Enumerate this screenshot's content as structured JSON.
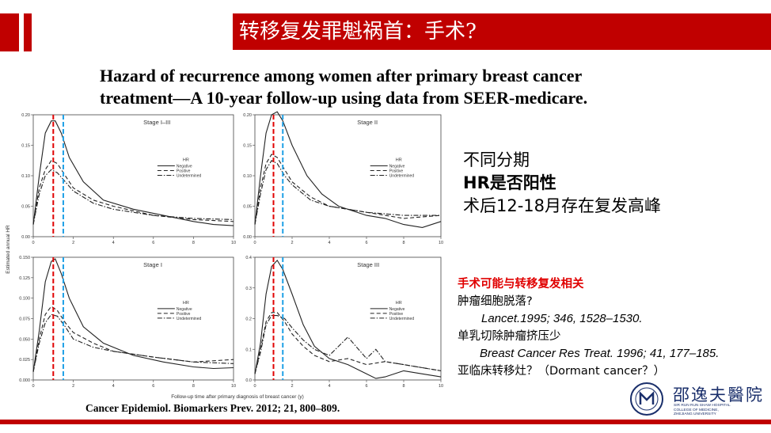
{
  "slide_title": "转移复发罪魁祸首：手术?",
  "paper_title_line1": "Hazard of recurrence among women after primary breast cancer",
  "paper_title_line2": "treatment—A 10-year follow-up using data from SEER-medicare.",
  "key_points": [
    "不同分期",
    "HR是否阳性",
    "术后12-18月存在复发高峰"
  ],
  "notes": {
    "heading": "手术可能与转移复发相关",
    "line1": "肿瘤细胞脱落?",
    "ref1": "Lancet.1995; 346, 1528–1530.",
    "line2": "单乳切除肿瘤挤压少",
    "ref2": "Breast Cancer Res Treat. 1996; 41, 177–185.",
    "line3": "亚临床转移灶？（Dormant cancer？）"
  },
  "citation": "Cancer Epidemiol. Biomarkers Prev. 2012; 21, 800–809.",
  "hospital_logo": {
    "name": "邵逸夫醫院",
    "sub1": "SIR RUN RUN SHAW HOSPITAL",
    "sub2": "COLLEGE OF MEDICINE,",
    "sub3": "ZHEJIANG UNIVERSITY"
  },
  "chart_data": [
    {
      "type": "line",
      "title": "Stage I–III",
      "xlabel": "Follow-up time after primary diagnosis of breast cancer (y)",
      "ylabel": "Estimated annual HR",
      "xlim": [
        0,
        10
      ],
      "ylim": [
        0,
        0.2
      ],
      "xticks": [
        0,
        2,
        4,
        6,
        8,
        10
      ],
      "yticks": [
        0.0,
        0.05,
        0.1,
        0.15,
        0.2
      ],
      "legend_title": "HR",
      "series": [
        {
          "name": "Negative",
          "style": "solid",
          "x": [
            0,
            0.3,
            0.6,
            0.9,
            1.1,
            1.4,
            1.8,
            2.5,
            3.5,
            5,
            6.5,
            8,
            9,
            10
          ],
          "y": [
            0.02,
            0.1,
            0.17,
            0.19,
            0.19,
            0.17,
            0.13,
            0.09,
            0.06,
            0.045,
            0.035,
            0.025,
            0.02,
            0.018
          ]
        },
        {
          "name": "Positive",
          "style": "dashed",
          "x": [
            0,
            0.3,
            0.6,
            0.9,
            1.2,
            1.6,
            2,
            3,
            4,
            6,
            8,
            10
          ],
          "y": [
            0.02,
            0.08,
            0.11,
            0.125,
            0.12,
            0.1,
            0.08,
            0.06,
            0.05,
            0.035,
            0.028,
            0.025
          ]
        },
        {
          "name": "Undetermined",
          "style": "dashdot",
          "x": [
            0,
            0.3,
            0.6,
            0.9,
            1.2,
            1.6,
            2,
            3,
            4,
            6,
            8,
            10
          ],
          "y": [
            0.02,
            0.07,
            0.1,
            0.11,
            0.105,
            0.09,
            0.075,
            0.055,
            0.045,
            0.035,
            0.03,
            0.028
          ]
        }
      ]
    },
    {
      "type": "line",
      "title": "Stage II",
      "xlim": [
        0,
        10
      ],
      "ylim": [
        0,
        0.2
      ],
      "xticks": [
        0,
        2,
        4,
        6,
        8,
        10
      ],
      "yticks": [
        0.0,
        0.05,
        0.1,
        0.15,
        0.2
      ],
      "legend_title": "HR",
      "series": [
        {
          "name": "Negative",
          "style": "solid",
          "x": [
            0,
            0.3,
            0.6,
            0.9,
            1.2,
            1.5,
            2,
            2.8,
            3.6,
            4.5,
            6,
            7,
            8,
            9,
            10
          ],
          "y": [
            0.02,
            0.1,
            0.17,
            0.2,
            0.205,
            0.19,
            0.15,
            0.1,
            0.07,
            0.05,
            0.035,
            0.03,
            0.02,
            0.015,
            0.025
          ]
        },
        {
          "name": "Positive",
          "style": "dashed",
          "x": [
            0,
            0.3,
            0.6,
            0.9,
            1.2,
            1.6,
            2,
            3,
            4,
            6,
            8,
            10
          ],
          "y": [
            0.02,
            0.08,
            0.12,
            0.135,
            0.13,
            0.11,
            0.09,
            0.065,
            0.05,
            0.04,
            0.03,
            0.035
          ]
        },
        {
          "name": "Undetermined",
          "style": "dashdot",
          "x": [
            0,
            0.3,
            0.6,
            0.9,
            1.2,
            1.6,
            2,
            3,
            4,
            6,
            8,
            10
          ],
          "y": [
            0.02,
            0.07,
            0.11,
            0.125,
            0.12,
            0.1,
            0.085,
            0.06,
            0.05,
            0.04,
            0.035,
            0.035
          ]
        }
      ]
    },
    {
      "type": "line",
      "title": "Stage I",
      "xlim": [
        0,
        10
      ],
      "ylim": [
        0,
        0.15
      ],
      "xticks": [
        0,
        2,
        4,
        6,
        8,
        10
      ],
      "yticks": [
        0.0,
        0.025,
        0.05,
        0.075,
        0.1,
        0.125,
        0.15
      ],
      "legend_title": "HR",
      "series": [
        {
          "name": "Negative",
          "style": "solid",
          "x": [
            0,
            0.3,
            0.6,
            0.9,
            1.1,
            1.4,
            1.8,
            2.5,
            3.5,
            5,
            6.5,
            8,
            9,
            10
          ],
          "y": [
            0.01,
            0.06,
            0.12,
            0.145,
            0.148,
            0.13,
            0.1,
            0.065,
            0.045,
            0.03,
            0.022,
            0.016,
            0.014,
            0.015
          ]
        },
        {
          "name": "Positive",
          "style": "dashed",
          "x": [
            0,
            0.3,
            0.6,
            0.9,
            1.2,
            1.6,
            2,
            3,
            4,
            6,
            8,
            10
          ],
          "y": [
            0.01,
            0.05,
            0.08,
            0.09,
            0.085,
            0.07,
            0.058,
            0.045,
            0.035,
            0.028,
            0.022,
            0.025
          ]
        },
        {
          "name": "Undetermined",
          "style": "dashdot",
          "x": [
            0,
            0.3,
            0.6,
            0.9,
            1.2,
            1.6,
            2,
            3,
            4,
            6,
            8,
            10
          ],
          "y": [
            0.01,
            0.045,
            0.07,
            0.08,
            0.078,
            0.065,
            0.05,
            0.04,
            0.035,
            0.028,
            0.022,
            0.02
          ]
        }
      ]
    },
    {
      "type": "line",
      "title": "Stage III",
      "xlim": [
        0,
        10
      ],
      "ylim": [
        0,
        0.4
      ],
      "xticks": [
        0,
        2,
        4,
        6,
        8,
        10
      ],
      "yticks": [
        0.0,
        0.1,
        0.2,
        0.3,
        0.4
      ],
      "legend_title": "HR",
      "series": [
        {
          "name": "Negative",
          "style": "solid",
          "x": [
            0,
            0.3,
            0.6,
            0.9,
            1.2,
            1.5,
            2,
            2.6,
            3.2,
            4,
            5,
            6,
            6.5,
            7,
            8,
            9,
            10
          ],
          "y": [
            0.02,
            0.12,
            0.28,
            0.37,
            0.39,
            0.36,
            0.28,
            0.18,
            0.11,
            0.07,
            0.05,
            0.02,
            0.005,
            0.01,
            0.03,
            0.02,
            0.01
          ]
        },
        {
          "name": "Positive",
          "style": "dashed",
          "x": [
            0,
            0.3,
            0.6,
            0.9,
            1.2,
            1.6,
            2,
            2.6,
            3.2,
            4,
            5,
            6,
            7,
            8,
            9,
            10
          ],
          "y": [
            0.02,
            0.1,
            0.19,
            0.22,
            0.22,
            0.19,
            0.15,
            0.11,
            0.08,
            0.06,
            0.07,
            0.05,
            0.06,
            0.05,
            0.04,
            0.03
          ]
        },
        {
          "name": "Undetermined",
          "style": "dashdot",
          "x": [
            0,
            0.3,
            0.6,
            0.9,
            1.2,
            1.6,
            2,
            2.6,
            3.2,
            4,
            5,
            6,
            6.5,
            7,
            8,
            9,
            10
          ],
          "y": [
            0.02,
            0.09,
            0.18,
            0.21,
            0.21,
            0.2,
            0.17,
            0.13,
            0.1,
            0.08,
            0.14,
            0.07,
            0.1,
            0.06,
            0.05,
            0.04,
            0.03
          ]
        }
      ]
    }
  ],
  "markers": {
    "red_x": 1.0,
    "blue_x": 1.5
  }
}
